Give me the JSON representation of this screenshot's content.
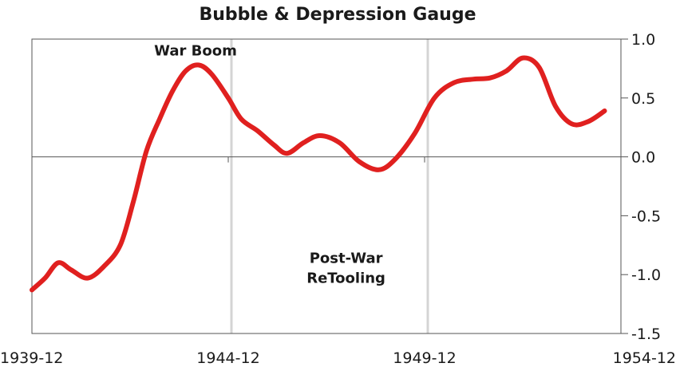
{
  "chart_data": {
    "type": "line",
    "title": "Bubble & Depression Gauge",
    "xlabel": "",
    "ylabel": "",
    "x_ticks": [
      "1939-12",
      "1944-12",
      "1949-12",
      "1954-12"
    ],
    "y_ticks": [
      "1.0",
      "0.5",
      "0.0",
      "-0.5",
      "-1.0",
      "-1.5"
    ],
    "ylim": [
      -1.5,
      1.0
    ],
    "xlim": [
      "1939-12",
      "1954-12"
    ],
    "grid": false,
    "reference_lines": [
      "1944-12",
      "1949-12"
    ],
    "annotations": [
      {
        "text": "War Boom",
        "x": "1944-02",
        "y": 0.86
      },
      {
        "text": "Post-War",
        "x": "1947-12",
        "y": -0.9
      },
      {
        "text": "ReTooling",
        "x": "1947-12",
        "y": -1.07
      }
    ],
    "series": [
      {
        "color": "#e0201f",
        "points": [
          {
            "x": "1939-12",
            "y": -1.13
          },
          {
            "x": "1940-04",
            "y": -1.03
          },
          {
            "x": "1940-08",
            "y": -0.9
          },
          {
            "x": "1940-12",
            "y": -0.96
          },
          {
            "x": "1941-05",
            "y": -1.03
          },
          {
            "x": "1941-10",
            "y": -0.93
          },
          {
            "x": "1942-03",
            "y": -0.75
          },
          {
            "x": "1942-07",
            "y": -0.38
          },
          {
            "x": "1942-11",
            "y": 0.05
          },
          {
            "x": "1943-03",
            "y": 0.32
          },
          {
            "x": "1943-07",
            "y": 0.56
          },
          {
            "x": "1943-11",
            "y": 0.73
          },
          {
            "x": "1944-03",
            "y": 0.78
          },
          {
            "x": "1944-07",
            "y": 0.7
          },
          {
            "x": "1944-12",
            "y": 0.5
          },
          {
            "x": "1945-04",
            "y": 0.32
          },
          {
            "x": "1945-09",
            "y": 0.22
          },
          {
            "x": "1946-02",
            "y": 0.1
          },
          {
            "x": "1946-06",
            "y": 0.03
          },
          {
            "x": "1946-11",
            "y": 0.12
          },
          {
            "x": "1947-04",
            "y": 0.18
          },
          {
            "x": "1947-10",
            "y": 0.12
          },
          {
            "x": "1948-04",
            "y": -0.04
          },
          {
            "x": "1948-10",
            "y": -0.11
          },
          {
            "x": "1949-03",
            "y": -0.02
          },
          {
            "x": "1949-09",
            "y": 0.2
          },
          {
            "x": "1950-03",
            "y": 0.5
          },
          {
            "x": "1950-09",
            "y": 0.63
          },
          {
            "x": "1951-03",
            "y": 0.66
          },
          {
            "x": "1951-08",
            "y": 0.67
          },
          {
            "x": "1952-01",
            "y": 0.73
          },
          {
            "x": "1952-06",
            "y": 0.84
          },
          {
            "x": "1952-11",
            "y": 0.76
          },
          {
            "x": "1953-04",
            "y": 0.43
          },
          {
            "x": "1953-09",
            "y": 0.28
          },
          {
            "x": "1954-02",
            "y": 0.3
          },
          {
            "x": "1954-07",
            "y": 0.39
          }
        ]
      }
    ]
  }
}
